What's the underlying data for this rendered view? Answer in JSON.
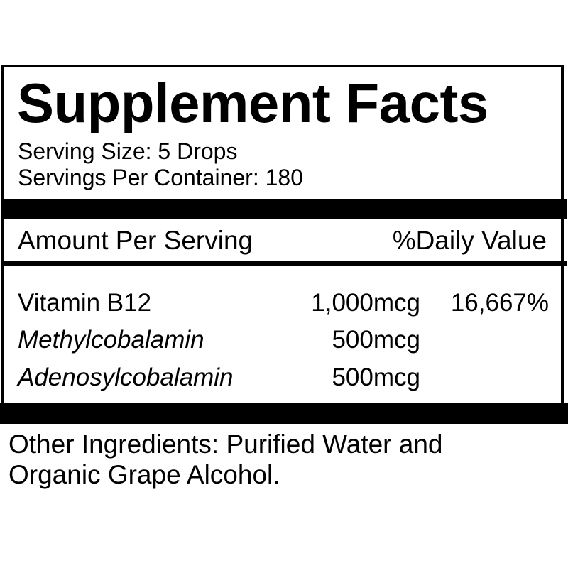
{
  "label": {
    "title": "Supplement Facts",
    "serving_size": "Serving Size: 5 Drops",
    "servings_per_container": "Servings Per Container: 180",
    "header": {
      "amount": "Amount Per Serving",
      "daily_value": "%Daily Value"
    },
    "rows": [
      {
        "name": "Vitamin B12",
        "amount": "1,000mcg",
        "dv": "16,667%"
      },
      {
        "name": "Methylcobalamin",
        "amount": "500mcg",
        "dv": ""
      },
      {
        "name": "Adenosylcobalamin",
        "amount": "500mcg",
        "dv": ""
      }
    ],
    "other_ingredients": [
      "Other Ingredients: Purified Water and",
      "Organic Grape Alcohol."
    ]
  }
}
